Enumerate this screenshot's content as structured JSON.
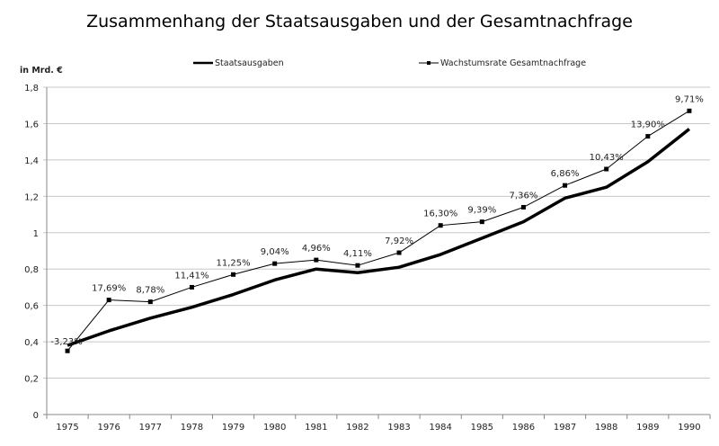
{
  "chart_data": {
    "type": "line",
    "title": "Zusammenhang der Staatsausgaben und der Gesamtnachfrage",
    "ylabel": "in Mrd. €",
    "xlabel": "",
    "ylim": [
      0,
      1.8
    ],
    "yticks": [
      "0",
      "0,2",
      "0,4",
      "0,6",
      "0,8",
      "1",
      "1,2",
      "1,4",
      "1,6",
      "1,8"
    ],
    "grid": true,
    "legend_position": "top",
    "categories": [
      "1975",
      "1976",
      "1977",
      "1978",
      "1979",
      "1980",
      "1981",
      "1982",
      "1983",
      "1984",
      "1985",
      "1986",
      "1987",
      "1988",
      "1989",
      "1990"
    ],
    "series": [
      {
        "name": "Staatsausgaben",
        "color": "#000000",
        "marker": "none",
        "values": [
          0.38,
          0.46,
          0.53,
          0.59,
          0.66,
          0.74,
          0.8,
          0.78,
          0.81,
          0.88,
          0.97,
          1.06,
          1.19,
          1.25,
          1.39,
          1.57
        ]
      },
      {
        "name": "Wachstumsrate Gesamtnachfrage",
        "color": "#000000",
        "marker": "square",
        "values": [
          0.35,
          0.63,
          0.62,
          0.7,
          0.77,
          0.83,
          0.85,
          0.82,
          0.89,
          1.04,
          1.06,
          1.14,
          1.26,
          1.35,
          1.53,
          1.67
        ],
        "data_labels": [
          "-3,23%",
          "17,69%",
          "8,78%",
          "11,41%",
          "11,25%",
          "9,04%",
          "4,96%",
          "4,11%",
          "7,92%",
          "16,30%",
          "9,39%",
          "7,36%",
          "6,86%",
          "10,43%",
          "13,90%",
          "9,71%"
        ]
      }
    ]
  }
}
